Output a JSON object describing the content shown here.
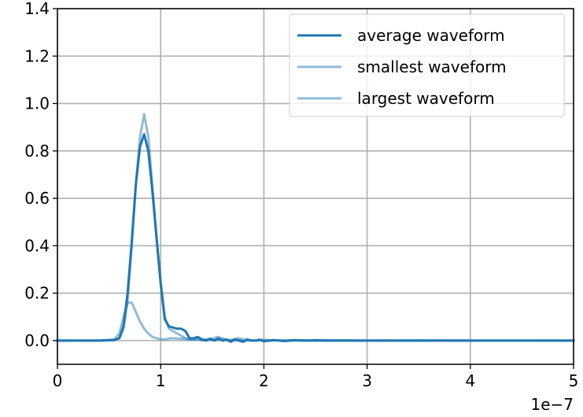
{
  "chart_data": {
    "type": "line",
    "title": "",
    "xlabel": "",
    "ylabel": "",
    "x_offset_label": "1e−7",
    "xlim": [
      0,
      5e-07
    ],
    "ylim": [
      -0.1,
      1.4
    ],
    "grid": true,
    "legend_position": "upper right",
    "x_ticks": [
      {
        "value": 0,
        "label": "0"
      },
      {
        "value": 1e-07,
        "label": "1"
      },
      {
        "value": 2e-07,
        "label": "2"
      },
      {
        "value": 3e-07,
        "label": "3"
      },
      {
        "value": 4e-07,
        "label": "4"
      },
      {
        "value": 5e-07,
        "label": "5"
      }
    ],
    "y_ticks": [
      {
        "value": 0.0,
        "label": "0.0"
      },
      {
        "value": 0.2,
        "label": "0.2"
      },
      {
        "value": 0.4,
        "label": "0.4"
      },
      {
        "value": 0.6,
        "label": "0.6"
      },
      {
        "value": 0.8,
        "label": "0.8"
      },
      {
        "value": 1.0,
        "label": "1.0"
      },
      {
        "value": 1.2,
        "label": "1.2"
      },
      {
        "value": 1.4,
        "label": "1.4"
      }
    ],
    "series": [
      {
        "name": "average waveform",
        "color": "#1f77b4",
        "opacity": 1.0,
        "x": [
          0,
          4e-08,
          5.5e-08,
          6e-08,
          6.4e-08,
          6.8e-08,
          7.2e-08,
          7.6e-08,
          8e-08,
          8.4e-08,
          8.8e-08,
          9.2e-08,
          9.6e-08,
          1e-07,
          1.04e-07,
          1.08e-07,
          1.12e-07,
          1.16e-07,
          1.2e-07,
          1.24e-07,
          1.28e-07,
          1.32e-07,
          1.36e-07,
          1.4e-07,
          1.44e-07,
          1.48e-07,
          1.52e-07,
          1.56e-07,
          1.6e-07,
          1.64e-07,
          1.68e-07,
          1.72e-07,
          1.76e-07,
          1.8e-07,
          1.84e-07,
          1.88e-07,
          1.92e-07,
          1.96e-07,
          2e-07,
          2.1e-07,
          2.2e-07,
          2.3e-07,
          2.4e-07,
          2.5e-07,
          2.6e-07,
          2.8e-07,
          3e-07,
          3.2e-07,
          3.4e-07,
          3.6e-07,
          3.8e-07,
          4e-07,
          4.5e-07,
          5e-07
        ],
        "y": [
          0.0,
          0.0,
          0.002,
          0.01,
          0.06,
          0.2,
          0.42,
          0.66,
          0.82,
          0.87,
          0.8,
          0.63,
          0.43,
          0.24,
          0.09,
          0.06,
          0.055,
          0.05,
          0.05,
          0.04,
          0.01,
          0.01,
          0.015,
          0.005,
          0.0,
          0.008,
          0.0,
          0.01,
          0.0,
          0.005,
          -0.005,
          0.005,
          0.0,
          -0.005,
          0.005,
          0.0,
          0.0,
          0.004,
          -0.003,
          0.002,
          -0.002,
          0.002,
          0.0,
          0.001,
          0.0,
          0.0,
          0.0,
          0.0,
          0.0,
          0.0,
          0.0,
          0.0,
          0.0,
          0.0
        ]
      },
      {
        "name": "smallest waveform",
        "color": "#1f77b4",
        "opacity": 0.5,
        "x": [
          0,
          4e-08,
          5.5e-08,
          6e-08,
          6.4e-08,
          6.8e-08,
          7.2e-08,
          7.6e-08,
          8e-08,
          8.4e-08,
          8.8e-08,
          9.2e-08,
          9.6e-08,
          1e-07,
          1.04e-07,
          1.1e-07,
          1.2e-07,
          1.3e-07,
          1.4e-07,
          1.5e-07,
          1.6e-07,
          1.8e-07,
          2e-07,
          2.5e-07,
          3e-07,
          4e-07,
          5e-07
        ],
        "y": [
          0.0,
          0.0,
          0.005,
          0.03,
          0.1,
          0.16,
          0.16,
          0.12,
          0.08,
          0.05,
          0.03,
          0.015,
          0.01,
          0.005,
          0.005,
          0.01,
          0.008,
          0.004,
          0.005,
          0.002,
          0.003,
          0.0,
          0.001,
          0.0,
          0.0,
          0.0,
          0.0
        ]
      },
      {
        "name": "largest waveform",
        "color": "#1f77b4",
        "opacity": 0.5,
        "x": [
          0,
          4e-08,
          5.5e-08,
          6e-08,
          6.4e-08,
          6.8e-08,
          7.2e-08,
          7.6e-08,
          8e-08,
          8.4e-08,
          8.8e-08,
          9.2e-08,
          9.6e-08,
          1e-07,
          1.04e-07,
          1.08e-07,
          1.12e-07,
          1.16e-07,
          1.2e-07,
          1.24e-07,
          1.28e-07,
          1.32e-07,
          1.36e-07,
          1.4e-07,
          1.45e-07,
          1.5e-07,
          1.55e-07,
          1.6e-07,
          1.65e-07,
          1.7e-07,
          1.75e-07,
          1.8e-07,
          1.9e-07,
          2e-07,
          2.2e-07,
          2.5e-07,
          3e-07,
          3.5e-07,
          4e-07,
          4.5e-07,
          5e-07
        ],
        "y": [
          0.0,
          0.0,
          0.002,
          0.01,
          0.05,
          0.17,
          0.4,
          0.66,
          0.86,
          0.955,
          0.86,
          0.65,
          0.44,
          0.25,
          0.1,
          0.05,
          0.04,
          0.03,
          0.02,
          0.01,
          0.005,
          0.005,
          0.01,
          0.0,
          0.005,
          0.008,
          0.015,
          0.01,
          0.0,
          0.005,
          0.01,
          0.005,
          0.0,
          0.003,
          0.0,
          0.002,
          0.0,
          0.001,
          0.0,
          0.0,
          0.0
        ]
      }
    ]
  }
}
